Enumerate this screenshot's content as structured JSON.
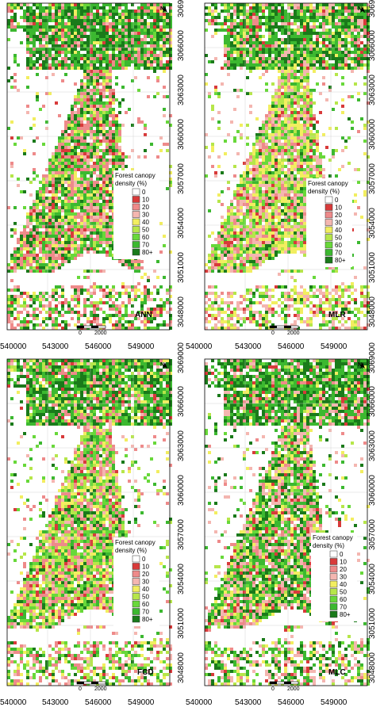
{
  "legend": {
    "title_line1": "Forest canopy",
    "title_line2": "density (%)",
    "classes": [
      {
        "label": "0",
        "color": "#ffffff"
      },
      {
        "label": "10",
        "color": "#d83a3a"
      },
      {
        "label": "20",
        "color": "#ee8a8a"
      },
      {
        "label": "30",
        "color": "#f4b6b0"
      },
      {
        "label": "40",
        "color": "#f2ee60"
      },
      {
        "label": "50",
        "color": "#b6e64a"
      },
      {
        "label": "60",
        "color": "#68d83a"
      },
      {
        "label": "70",
        "color": "#3cb830"
      },
      {
        "label": "80+",
        "color": "#1a7a1a"
      }
    ]
  },
  "x_ticks": [
    "540000",
    "543000",
    "546000",
    "549000"
  ],
  "y_ticks": [
    "3048000",
    "3051000",
    "3054000",
    "3057000",
    "3060000",
    "3063000",
    "3066000",
    "3069000"
  ],
  "scale_bar": {
    "zero": "0",
    "end": "2000"
  },
  "north_label": "N",
  "panels": [
    {
      "method": "ANN",
      "seed": 11,
      "mix": [
        0.28,
        0.1,
        0.1,
        0.07,
        0.1,
        0.2,
        0.15
      ]
    },
    {
      "method": "MLR",
      "seed": 23,
      "mix": [
        0.12,
        0.22,
        0.2,
        0.18,
        0.13,
        0.1,
        0.05
      ]
    },
    {
      "method": "FCD",
      "seed": 37,
      "mix": [
        0.22,
        0.1,
        0.14,
        0.16,
        0.16,
        0.14,
        0.08
      ]
    },
    {
      "method": "MLC",
      "seed": 51,
      "mix": [
        0.1,
        0.22,
        0.1,
        0.08,
        0.08,
        0.22,
        0.2
      ]
    }
  ]
}
